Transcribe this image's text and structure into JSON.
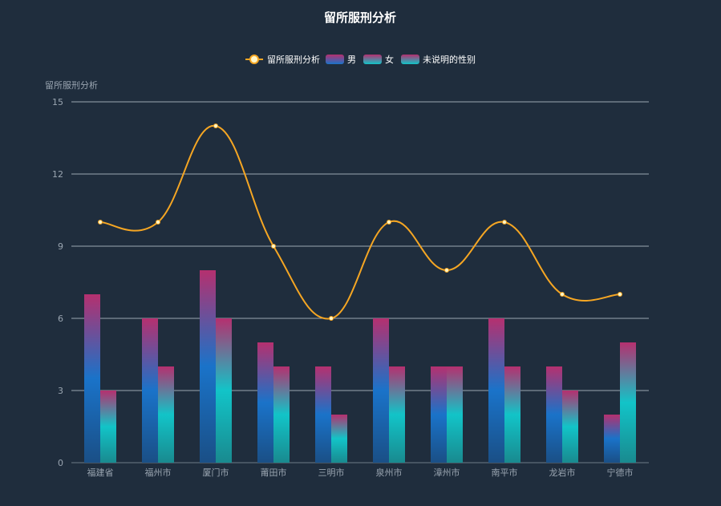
{
  "chart_data": {
    "type": "bar+line",
    "title": "留所服刑分析",
    "ylabel": "留所服刑分析",
    "categories": [
      "福建省",
      "福州市",
      "厦门市",
      "莆田市",
      "三明市",
      "泉州市",
      "漳州市",
      "南平市",
      "龙岩市",
      "宁德市"
    ],
    "ylim": [
      0,
      15
    ],
    "yticks": [
      0,
      3,
      6,
      9,
      12,
      15
    ],
    "grid": true,
    "legend_position": "top-center",
    "line_series": {
      "name": "留所服刑分析",
      "values": [
        10,
        10,
        14,
        9,
        6,
        10,
        8,
        10,
        7,
        7
      ],
      "color": "#f5a623"
    },
    "series": [
      {
        "name": "男",
        "values": [
          7,
          6,
          8,
          5,
          4,
          6,
          4,
          6,
          4,
          2
        ]
      },
      {
        "name": "女",
        "values": [
          3,
          4,
          6,
          4,
          2,
          4,
          4,
          4,
          3,
          5
        ]
      },
      {
        "name": "未说明的性别",
        "values": [
          0,
          0,
          0,
          0,
          0,
          0,
          0,
          0,
          0,
          0
        ]
      }
    ],
    "colors": {
      "background": "#1f2d3d",
      "male_top": "#b5306f",
      "male_mid": "#1a73c9",
      "male_bottom": "#1a4f86",
      "female_top": "#b5306f",
      "female_mid": "#12c4c8",
      "female_bottom": "#198a8f",
      "line": "#f5a623",
      "point": "#fff6c8"
    }
  }
}
